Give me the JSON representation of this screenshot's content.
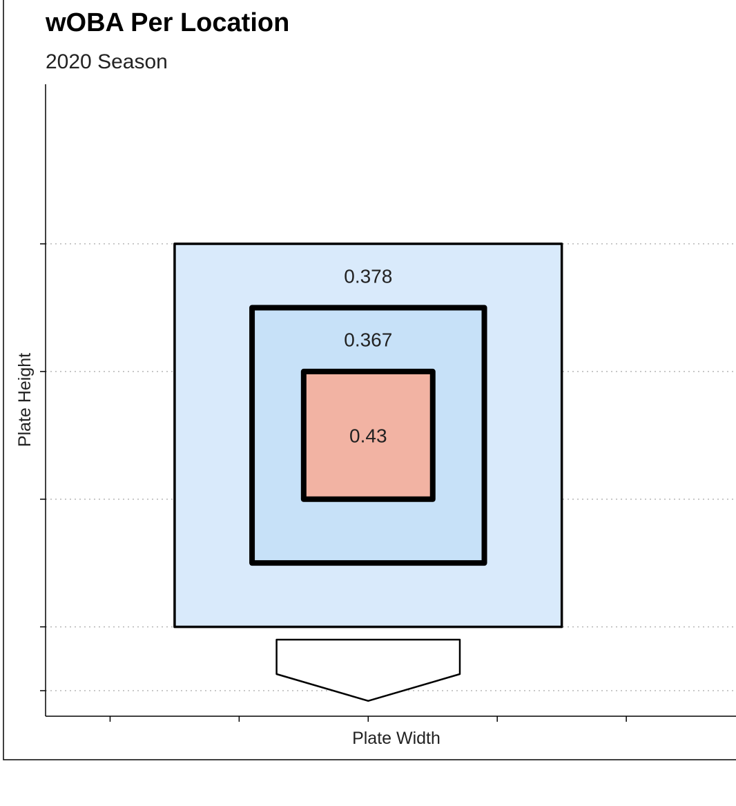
{
  "chart_data": {
    "type": "heatmap",
    "title": "wOBA Per Location",
    "subtitle": "2020 Season",
    "xlabel": "Plate Width",
    "ylabel": "Plate Height",
    "xlim": [
      -2.5,
      2.85
    ],
    "ylim": [
      0.3,
      5.25
    ],
    "grid": "horizontal-dotted",
    "zones": [
      {
        "name": "outer",
        "value": 0.378,
        "label": "0.378",
        "x": [
          -1.5,
          1.5
        ],
        "y": [
          1.0,
          4.0
        ],
        "color": "#d9eafb"
      },
      {
        "name": "middle",
        "value": 0.367,
        "label": "0.367",
        "x": [
          -0.9,
          0.9
        ],
        "y": [
          1.5,
          3.5
        ],
        "color": "#c7e1f8"
      },
      {
        "name": "heart",
        "value": 0.43,
        "label": "0.43",
        "x": [
          -0.5,
          0.5
        ],
        "y": [
          2.0,
          3.0
        ],
        "color": "#f2b3a3"
      }
    ],
    "home_plate": {
      "points": [
        [
          -0.71,
          0.9
        ],
        [
          0.71,
          0.9
        ],
        [
          0.71,
          0.63
        ],
        [
          0.0,
          0.42
        ],
        [
          -0.71,
          0.63
        ]
      ]
    },
    "x_ticks": [
      -2.0,
      -1.0,
      0.0,
      1.0,
      2.0
    ],
    "y_ticks": [
      0.5,
      1.0,
      2.0,
      3.0,
      4.0
    ]
  }
}
